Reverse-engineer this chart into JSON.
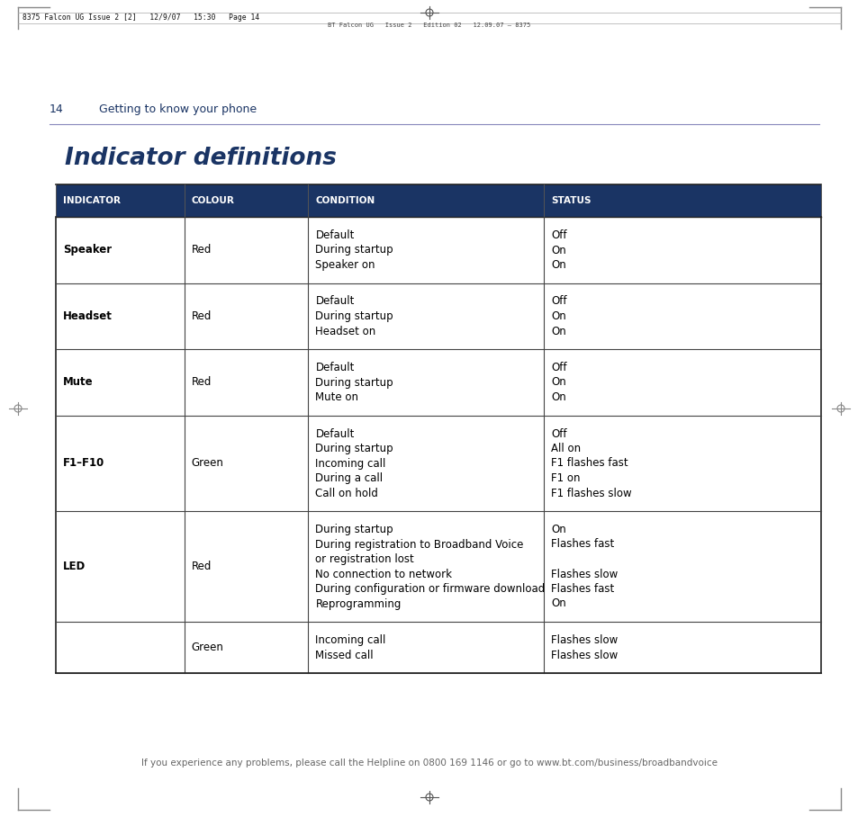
{
  "page_header_left": "8375 Falcon UG Issue 2 [2]   12/9/07   15:30   Page 14",
  "page_header_right": "BT Falcon UG   Issue 2   Edition 02   12.09.07 – 8375",
  "section_num": "14",
  "section_title": "Getting to know your phone",
  "main_title": "Indicator definitions",
  "header_bg": "#1a3464",
  "header_text_color": "#ffffff",
  "col_headers": [
    "INDICATOR",
    "COLOUR",
    "CONDITION",
    "STATUS"
  ],
  "rows": [
    {
      "indicator": "Speaker",
      "colour": "Red",
      "conditions": [
        "Default",
        "During startup",
        "Speaker on"
      ],
      "statuses": [
        "Off",
        "On",
        "On"
      ]
    },
    {
      "indicator": "Headset",
      "colour": "Red",
      "conditions": [
        "Default",
        "During startup",
        "Headset on"
      ],
      "statuses": [
        "Off",
        "On",
        "On"
      ]
    },
    {
      "indicator": "Mute",
      "colour": "Red",
      "conditions": [
        "Default",
        "During startup",
        "Mute on"
      ],
      "statuses": [
        "Off",
        "On",
        "On"
      ]
    },
    {
      "indicator": "F1–F10",
      "colour": "Green",
      "conditions": [
        "Default",
        "During startup",
        "Incoming call",
        "During a call",
        "Call on hold"
      ],
      "statuses": [
        "Off",
        "All on",
        "F1 flashes fast",
        "F1 on",
        "F1 flashes slow"
      ]
    },
    {
      "indicator": "LED",
      "colour": "Red",
      "conditions": [
        "During startup",
        "During registration to Broadband Voice\nor registration lost",
        "No connection to network",
        "During configuration or firmware download",
        "Reprogramming"
      ],
      "statuses": [
        "On",
        "Flashes fast",
        "Flashes slow",
        "Flashes fast",
        "On"
      ]
    },
    {
      "indicator": "",
      "colour": "Green",
      "conditions": [
        "Incoming call",
        "Missed call"
      ],
      "statuses": [
        "Flashes slow",
        "Flashes slow"
      ]
    }
  ],
  "footer_text": "If you experience any problems, please call the Helpline on ",
  "footer_phone": "0800 169 1146",
  "footer_middle": " or go to ",
  "footer_url": "www.bt.com/business/broadbandvoice",
  "title_color": "#1a3464",
  "border_color": "#333333"
}
